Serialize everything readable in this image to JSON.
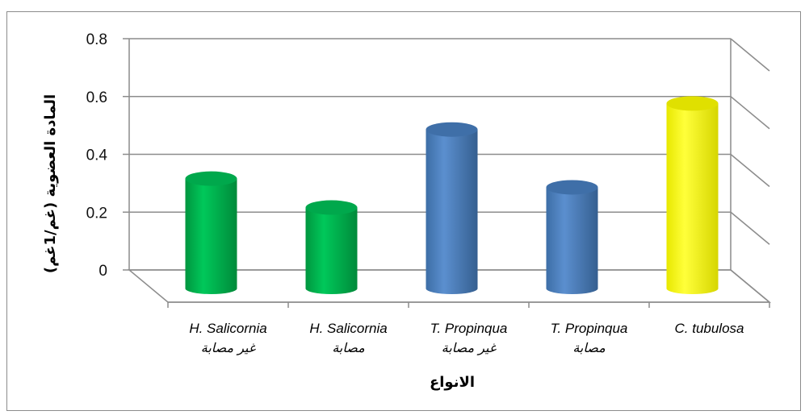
{
  "chart_data": {
    "type": "bar",
    "style": "3d-cylinder",
    "categories": [
      {
        "en": "H.  Salicornia",
        "ar": "غير مصابة"
      },
      {
        "en": "H.  Salicornia",
        "ar": "مصابة"
      },
      {
        "en": "T. Propinqua",
        "ar": "غير مصابة"
      },
      {
        "en": "T. Propinqua",
        "ar": "مصابة"
      },
      {
        "en": "C. tubulosa",
        "ar": ""
      }
    ],
    "values": [
      0.38,
      0.28,
      0.55,
      0.35,
      0.64
    ],
    "colors": [
      "#00b050",
      "#00b050",
      "#4f81bd",
      "#4f81bd",
      "#ffff00"
    ],
    "xlabel": "الانواع",
    "ylabel": "المادة العضوية (غم/1غم)",
    "ylim": [
      0,
      0.8
    ],
    "yticks": [
      "0.8",
      "0.6",
      "0.4",
      "0.2",
      "0"
    ],
    "grid": true
  }
}
